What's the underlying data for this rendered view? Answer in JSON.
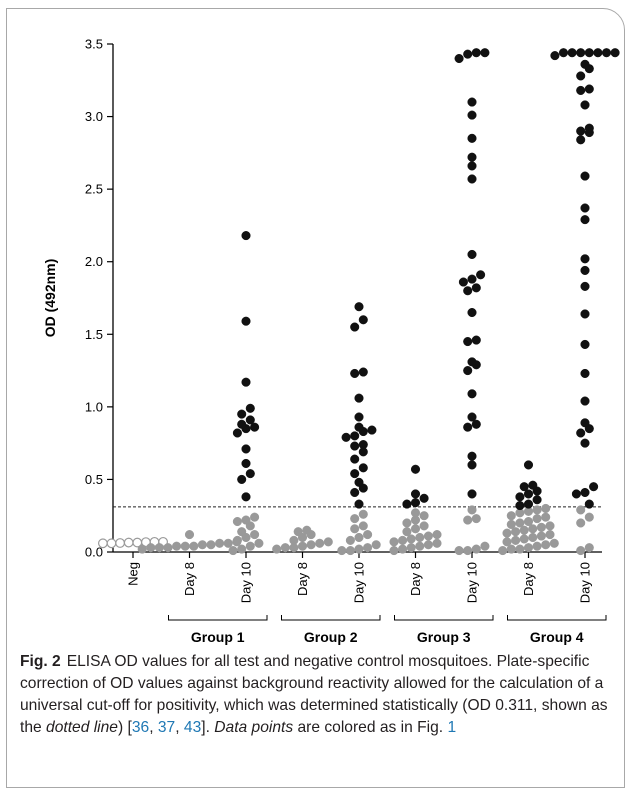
{
  "chart_data": {
    "type": "scatter",
    "title": "",
    "xlabel": "",
    "ylabel": "OD (492nm)",
    "ylim": [
      0,
      3.5
    ],
    "y_ticks": [
      "0.0",
      "0.5",
      "1.0",
      "1.5",
      "2.0",
      "2.5",
      "3.0",
      "3.5"
    ],
    "grid": false,
    "cutoff": 0.311,
    "categories": [
      "Neg",
      "Day 8",
      "Day 10",
      "Day 8",
      "Day 10",
      "Day 8",
      "Day 10",
      "Day 8",
      "Day 10"
    ],
    "groups": [
      {
        "label": "Group 1",
        "categories": [
          1,
          2
        ]
      },
      {
        "label": "Group 2",
        "categories": [
          3,
          4
        ]
      },
      {
        "label": "Group 3",
        "categories": [
          5,
          6
        ]
      },
      {
        "label": "Group 4",
        "categories": [
          7,
          8
        ]
      }
    ],
    "colors": {
      "negative": "#9a9a9a",
      "below_cutoff": "#999999",
      "above_cutoff": "#111111",
      "axis": "#000000"
    },
    "series": [
      {
        "category": 0,
        "points": [
          0.06,
          0.065,
          0.07,
          0.065,
          0.06,
          0.07,
          0.068,
          0.062
        ]
      },
      {
        "category": 1,
        "points": [
          0.12,
          0.07,
          0.06,
          0.06,
          0.05,
          0.05,
          0.04,
          0.04,
          0.04,
          0.03,
          0.03,
          0.03,
          0.02
        ]
      },
      {
        "category": 2,
        "points": [
          2.18,
          1.59,
          1.17,
          0.99,
          0.95,
          0.91,
          0.88,
          0.86,
          0.85,
          0.82,
          0.71,
          0.61,
          0.54,
          0.5,
          0.38,
          0.24,
          0.22,
          0.21,
          0.18,
          0.14,
          0.12,
          0.1,
          0.08,
          0.06,
          0.04,
          0.02,
          0.01
        ]
      },
      {
        "category": 3,
        "points": [
          0.15,
          0.14,
          0.12,
          0.1,
          0.08,
          0.07,
          0.06,
          0.05,
          0.04,
          0.03,
          0.03,
          0.02
        ]
      },
      {
        "category": 4,
        "points": [
          1.69,
          1.6,
          1.55,
          1.24,
          1.23,
          1.06,
          0.93,
          0.86,
          0.84,
          0.83,
          0.8,
          0.79,
          0.74,
          0.73,
          0.69,
          0.64,
          0.58,
          0.54,
          0.48,
          0.44,
          0.41,
          0.33,
          0.26,
          0.23,
          0.18,
          0.16,
          0.12,
          0.1,
          0.08,
          0.05,
          0.03,
          0.02,
          0.01,
          0.01
        ]
      },
      {
        "category": 5,
        "points": [
          0.57,
          0.4,
          0.37,
          0.34,
          0.33,
          0.27,
          0.25,
          0.22,
          0.2,
          0.18,
          0.16,
          0.14,
          0.12,
          0.11,
          0.1,
          0.09,
          0.08,
          0.07,
          0.06,
          0.05,
          0.04,
          0.03,
          0.02,
          0.01
        ]
      },
      {
        "category": 6,
        "points": [
          3.44,
          3.44,
          3.43,
          3.4,
          3.1,
          3.01,
          2.85,
          2.72,
          2.66,
          2.57,
          2.05,
          1.91,
          1.88,
          1.86,
          1.82,
          1.8,
          1.65,
          1.46,
          1.45,
          1.31,
          1.29,
          1.25,
          1.09,
          0.93,
          0.88,
          0.86,
          0.66,
          0.6,
          0.4,
          0.29,
          0.23,
          0.22,
          0.04,
          0.02,
          0.01,
          0.01
        ]
      },
      {
        "category": 7,
        "points": [
          0.6,
          0.46,
          0.45,
          0.42,
          0.4,
          0.38,
          0.36,
          0.33,
          0.32,
          0.3,
          0.29,
          0.28,
          0.27,
          0.25,
          0.24,
          0.23,
          0.21,
          0.2,
          0.19,
          0.18,
          0.17,
          0.16,
          0.15,
          0.14,
          0.13,
          0.12,
          0.11,
          0.1,
          0.09,
          0.08,
          0.07,
          0.06,
          0.05,
          0.04,
          0.03,
          0.02,
          0.02,
          0.01
        ]
      },
      {
        "category": 8,
        "points": [
          3.44,
          3.44,
          3.44,
          3.44,
          3.44,
          3.44,
          3.44,
          3.42,
          3.36,
          3.33,
          3.28,
          3.19,
          3.18,
          3.08,
          2.92,
          2.9,
          2.89,
          2.84,
          2.59,
          2.37,
          2.29,
          2.02,
          1.94,
          1.83,
          1.64,
          1.43,
          1.23,
          1.04,
          0.89,
          0.85,
          0.82,
          0.75,
          0.45,
          0.41,
          0.4,
          0.33,
          0.29,
          0.24,
          0.2,
          0.03,
          0.01
        ]
      }
    ]
  },
  "caption": {
    "label": "Fig. 2",
    "text_1": "ELISA OD values for all test and negative control mosquitoes. Plate-specific correction of OD values against background reactivity allowed for the calculation of a universal cut-off for positivity, which was determined statistically (OD 0.311, shown as the ",
    "italic_1": "dotted line",
    "text_2": ") [",
    "ref_1": "36",
    "sep_1": ", ",
    "ref_2": "37",
    "sep_2": ", ",
    "ref_3": "43",
    "text_3": "]. ",
    "italic_2": "Data points",
    "text_4": " are colored as in Fig. ",
    "ref_4": "1"
  }
}
